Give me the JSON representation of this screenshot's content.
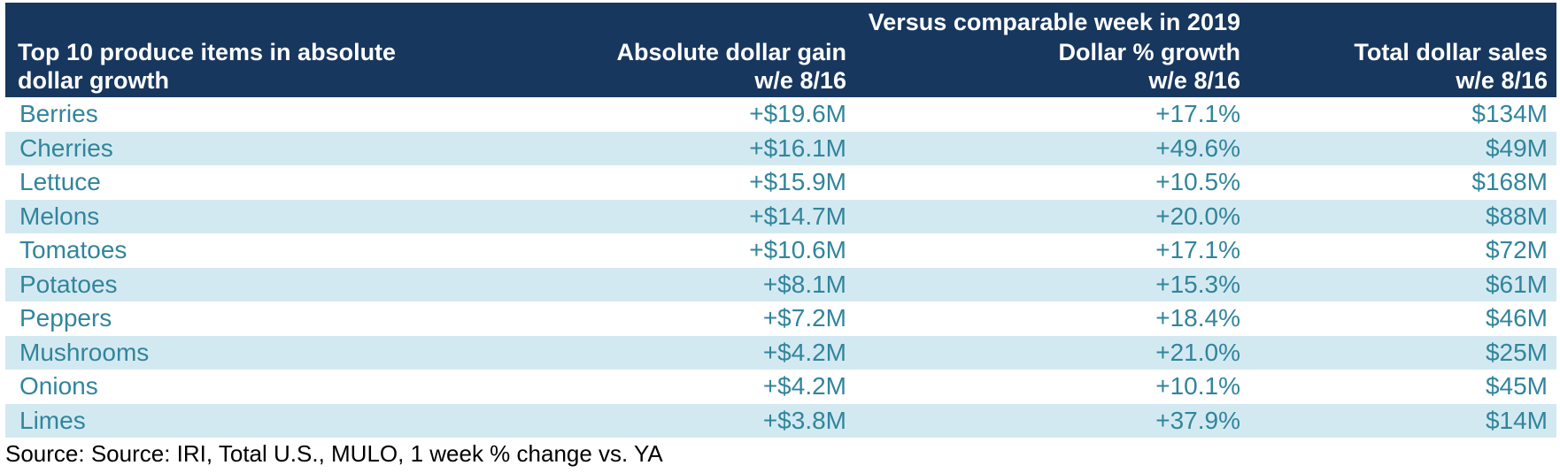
{
  "table": {
    "super_header": "Versus comparable week in 2019",
    "columns": [
      {
        "line1": "Top 10 produce items in absolute",
        "line2": "dollar growth"
      },
      {
        "line1": "Absolute dollar gain",
        "line2": "w/e 8/16"
      },
      {
        "line1": "Dollar % growth",
        "line2": "w/e 8/16"
      },
      {
        "line1": "Total dollar sales",
        "line2": "w/e 8/16"
      }
    ],
    "rows": [
      {
        "item": "Berries",
        "gain": "+$19.6M",
        "growth": "+17.1%",
        "sales": "$134M"
      },
      {
        "item": "Cherries",
        "gain": "+$16.1M",
        "growth": "+49.6%",
        "sales": "$49M"
      },
      {
        "item": "Lettuce",
        "gain": "+$15.9M",
        "growth": "+10.5%",
        "sales": "$168M"
      },
      {
        "item": "Melons",
        "gain": "+$14.7M",
        "growth": "+20.0%",
        "sales": "$88M"
      },
      {
        "item": "Tomatoes",
        "gain": "+$10.6M",
        "growth": "+17.1%",
        "sales": "$72M"
      },
      {
        "item": "Potatoes",
        "gain": "+$8.1M",
        "growth": "+15.3%",
        "sales": "$61M"
      },
      {
        "item": "Peppers",
        "gain": "+$7.2M",
        "growth": "+18.4%",
        "sales": "$46M"
      },
      {
        "item": "Mushrooms",
        "gain": "+$4.2M",
        "growth": "+21.0%",
        "sales": "$25M"
      },
      {
        "item": "Onions",
        "gain": "+$4.2M",
        "growth": "+10.1%",
        "sales": "$45M"
      },
      {
        "item": "Limes",
        "gain": "+$3.8M",
        "growth": "+37.9%",
        "sales": "$14M"
      }
    ]
  },
  "footnote": "Source: Source: IRI, Total U.S., MULO, 1 week % change vs. YA",
  "colors": {
    "header_bg": "#17375e",
    "header_text": "#ffffff",
    "row_text": "#31859c",
    "row_alt_bg": "#d3e9f1"
  }
}
